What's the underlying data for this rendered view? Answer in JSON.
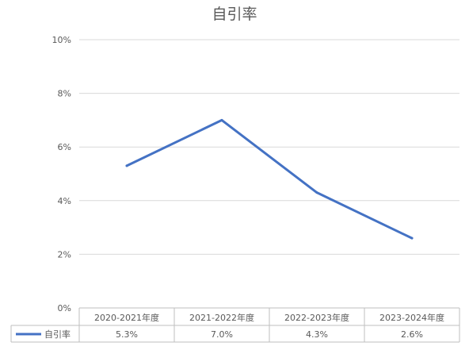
{
  "chart_data": {
    "type": "line",
    "title": "自引率",
    "categories": [
      "2020-2021年度",
      "2021-2022年度",
      "2022-2023年度",
      "2023-2024年度"
    ],
    "series": [
      {
        "name": "自引率",
        "values": [
          5.3,
          7.0,
          4.3,
          2.6
        ],
        "labels": [
          "5.3%",
          "7.0%",
          "4.3%",
          "2.6%"
        ],
        "color": "#4472C4"
      }
    ],
    "y_ticks": [
      "0%",
      "2%",
      "4%",
      "6%",
      "8%",
      "10%"
    ],
    "ylim": [
      0,
      10
    ],
    "grid": true,
    "legend": "data-table"
  }
}
